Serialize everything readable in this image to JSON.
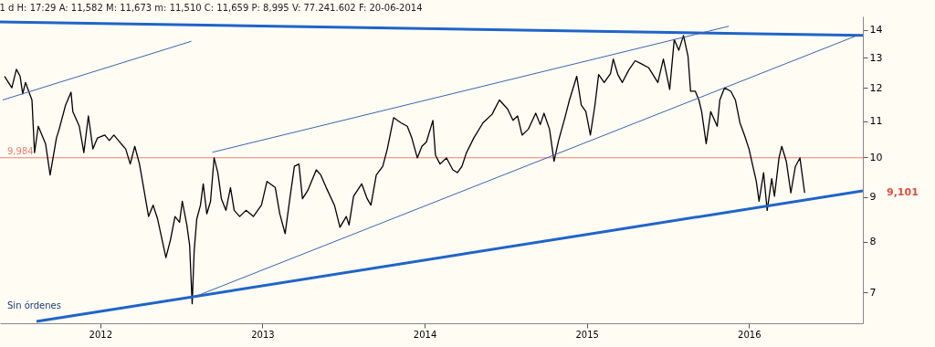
{
  "chart_data": {
    "type": "line",
    "title": "1 d H: 17:29 A: 11,582 M: 11,673 m: 11,510 C: 11,659 P: 8,995 V: 77.241.602 F: 20-06-2014",
    "xlim": [
      2011.382,
      2016.702
    ],
    "xticks": [
      2012,
      2013,
      2014,
      2015,
      2016
    ],
    "ylim": [
      6.45,
      14.5
    ],
    "yticks": [
      7,
      8,
      9,
      10,
      11,
      12,
      13,
      14
    ],
    "log": "y",
    "grid": false,
    "marker": "none",
    "line_style": "solid",
    "ref_lines": [
      {
        "axis": "y",
        "value": 9.984,
        "label": "9,984",
        "color": "#f08070"
      }
    ],
    "annotations": [
      "Sin órdenes",
      {
        "text": "9,101",
        "x": 2016.702,
        "y": 9.101
      }
    ],
    "series": [
      {
        "color": "#000000",
        "x": [
          2011.41,
          2011.455,
          2011.483,
          2011.506,
          2011.522,
          2011.539,
          2011.579,
          2011.595,
          2011.618,
          2011.663,
          2011.691,
          2011.73,
          2011.747,
          2011.786,
          2011.82,
          2011.831,
          2011.871,
          2011.899,
          2011.927,
          2011.955,
          2011.983,
          2012.028,
          2012.056,
          2012.084,
          2012.129,
          2012.157,
          2012.185,
          2012.213,
          2012.242,
          2012.27,
          2012.298,
          2012.326,
          2012.354,
          2012.405,
          2012.433,
          2012.461,
          2012.489,
          2012.506,
          2012.534,
          2012.551,
          2012.567,
          2012.579,
          2012.595,
          2012.618,
          2012.635,
          2012.657,
          2012.68,
          2012.702,
          2012.725,
          2012.747,
          2012.775,
          2012.803,
          2012.826,
          2012.86,
          2012.899,
          2012.944,
          2012.994,
          2013.028,
          2013.079,
          2013.107,
          2013.14,
          2013.169,
          2013.197,
          2013.225,
          2013.247,
          2013.281,
          2013.332,
          2013.36,
          2013.393,
          2013.444,
          2013.478,
          2013.517,
          2013.534,
          2013.562,
          2013.612,
          2013.646,
          2013.669,
          2013.702,
          2013.742,
          2013.77,
          2013.809,
          2013.854,
          2013.893,
          2013.921,
          2013.955,
          2013.983,
          2014.011,
          2014.051,
          2014.067,
          2014.095,
          2014.135,
          2014.174,
          2014.202,
          2014.23,
          2014.258,
          2014.303,
          2014.36,
          2014.416,
          2014.461,
          2014.511,
          2014.545,
          2014.573,
          2014.601,
          2014.64,
          2014.685,
          2014.713,
          2014.736,
          2014.77,
          2014.798,
          2014.826,
          2014.865,
          2014.893,
          2014.938,
          2014.966,
          2014.994,
          2015.022,
          2015.05,
          2015.073,
          2015.107,
          2015.146,
          2015.163,
          2015.191,
          2015.219,
          2015.258,
          2015.298,
          2015.331,
          2015.382,
          2015.438,
          2015.472,
          2015.511,
          2015.539,
          2015.567,
          2015.596,
          2015.624,
          2015.64,
          2015.669,
          2015.691,
          2015.708,
          2015.736,
          2015.764,
          2015.804,
          2015.82,
          2015.849,
          2015.888,
          2015.916,
          2015.944,
          2015.972,
          2016.0,
          2016.017,
          2016.045,
          2016.062,
          2016.09,
          2016.112,
          2016.14,
          2016.157,
          2016.185,
          2016.202,
          2016.23,
          2016.258,
          2016.286,
          2016.314,
          2016.343
        ],
        "values": [
          12.38,
          12.01,
          12.61,
          12.38,
          11.82,
          12.18,
          11.63,
          10.12,
          10.85,
          10.36,
          9.54,
          10.52,
          10.77,
          11.47,
          11.87,
          11.28,
          10.85,
          10.12,
          11.15,
          10.22,
          10.52,
          10.6,
          10.45,
          10.6,
          10.36,
          10.22,
          9.82,
          10.29,
          9.82,
          9.17,
          8.55,
          8.81,
          8.49,
          7.67,
          8.04,
          8.55,
          8.42,
          8.9,
          8.36,
          7.93,
          6.79,
          7.8,
          8.49,
          8.81,
          9.32,
          8.61,
          8.9,
          9.98,
          9.6,
          8.96,
          8.69,
          9.23,
          8.69,
          8.55,
          8.69,
          8.55,
          8.81,
          9.38,
          9.23,
          8.61,
          8.17,
          8.96,
          9.76,
          9.82,
          8.96,
          9.17,
          9.67,
          9.54,
          9.23,
          8.81,
          8.31,
          8.55,
          8.36,
          9.02,
          9.32,
          8.96,
          8.81,
          9.54,
          9.76,
          10.22,
          11.1,
          10.95,
          10.85,
          10.52,
          9.98,
          10.29,
          10.41,
          11.02,
          10.05,
          9.82,
          9.98,
          9.67,
          9.6,
          9.76,
          10.12,
          10.52,
          10.95,
          11.2,
          11.63,
          11.36,
          11.02,
          11.15,
          10.6,
          10.77,
          11.23,
          10.9,
          11.23,
          10.77,
          9.89,
          10.45,
          11.1,
          11.63,
          12.38,
          11.47,
          11.28,
          10.6,
          11.47,
          12.44,
          12.18,
          12.47,
          12.96,
          12.44,
          12.18,
          12.58,
          12.9,
          12.81,
          12.66,
          12.18,
          12.96,
          11.96,
          13.64,
          13.26,
          13.79,
          13.05,
          11.9,
          11.9,
          11.63,
          11.28,
          10.36,
          11.28,
          10.85,
          11.63,
          12.01,
          11.9,
          11.63,
          10.95,
          10.6,
          10.22,
          9.89,
          9.38,
          8.9,
          9.6,
          8.69,
          9.45,
          9.02,
          9.98,
          10.29,
          9.89,
          9.1,
          9.76,
          9.98,
          9.1
        ]
      },
      {
        "type": "line",
        "color": "#1f64c8",
        "x": [
          2011.382,
          2016.702
        ],
        "values": [
          14.29,
          13.79
        ]
      },
      {
        "type": "line",
        "color": "#1f64c8",
        "x": [
          2011.607,
          2016.702
        ],
        "values": [
          6.48,
          9.15
        ]
      },
      {
        "type": "line",
        "color": "#3a66b0",
        "x": [
          2011.399,
          2012.562
        ],
        "values": [
          11.63,
          13.58
        ]
      },
      {
        "type": "line",
        "color": "#3a66b0",
        "x": [
          2012.691,
          2015.876
        ],
        "values": [
          10.13,
          14.13
        ]
      },
      {
        "type": "line",
        "color": "#3a66b0",
        "x": [
          2012.567,
          2016.68
        ],
        "values": [
          6.9,
          13.82
        ]
      }
    ]
  }
}
